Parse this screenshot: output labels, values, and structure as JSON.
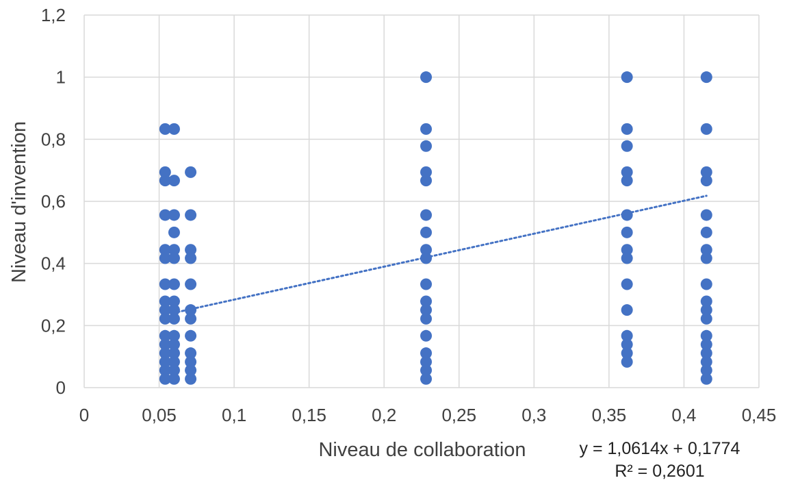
{
  "chart_data": {
    "type": "scatter",
    "xlabel": "Niveau de collaboration",
    "ylabel": "Niveau d'invention",
    "xlim": [
      0,
      0.45
    ],
    "ylim": [
      0,
      1.2
    ],
    "x_ticks": [
      "0",
      "0,05",
      "0,1",
      "0,15",
      "0,2",
      "0,25",
      "0,3",
      "0,35",
      "0,4",
      "0,45"
    ],
    "y_ticks": [
      "0",
      "0,2",
      "0,4",
      "0,6",
      "0,8",
      "1",
      "1,2"
    ],
    "grid": true,
    "colors": {
      "points": "#4472c4",
      "trendline": "#4472c4",
      "grid": "#d9d9d9"
    },
    "trendline": {
      "type": "linear",
      "slope": 1.0614,
      "intercept": 0.1774,
      "x_range": [
        0.059,
        0.415
      ],
      "equation": "y = 1,0614x + 0,1774",
      "r2": "R² = 0,2601"
    },
    "series": [
      {
        "x": 0.054,
        "y": [
          0.833,
          0.694,
          0.667,
          0.556,
          0.444,
          0.417,
          0.333,
          0.278,
          0.25,
          0.222,
          0.167,
          0.139,
          0.111,
          0.083,
          0.056,
          0.028
        ]
      },
      {
        "x": 0.06,
        "y": [
          0.833,
          0.667,
          0.556,
          0.5,
          0.444,
          0.417,
          0.333,
          0.278,
          0.25,
          0.222,
          0.167,
          0.139,
          0.111,
          0.083,
          0.056,
          0.028
        ]
      },
      {
        "x": 0.071,
        "y": [
          0.694,
          0.556,
          0.444,
          0.417,
          0.333,
          0.25,
          0.222,
          0.167,
          0.111,
          0.083,
          0.056,
          0.028
        ]
      },
      {
        "x": 0.228,
        "y": [
          1.0,
          0.833,
          0.778,
          0.694,
          0.667,
          0.556,
          0.5,
          0.444,
          0.417,
          0.333,
          0.278,
          0.25,
          0.222,
          0.167,
          0.111,
          0.083,
          0.056,
          0.028
        ]
      },
      {
        "x": 0.362,
        "y": [
          1.0,
          0.833,
          0.778,
          0.694,
          0.667,
          0.556,
          0.5,
          0.444,
          0.417,
          0.333,
          0.25,
          0.167,
          0.139,
          0.111,
          0.083
        ]
      },
      {
        "x": 0.415,
        "y": [
          1.0,
          0.833,
          0.694,
          0.667,
          0.556,
          0.5,
          0.444,
          0.417,
          0.333,
          0.278,
          0.25,
          0.222,
          0.167,
          0.139,
          0.111,
          0.083,
          0.056,
          0.028
        ]
      }
    ]
  }
}
